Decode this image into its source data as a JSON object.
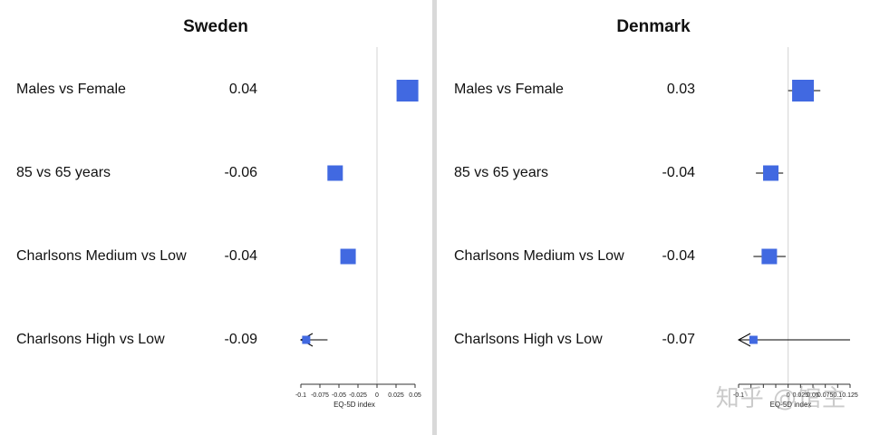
{
  "chart_data": [
    {
      "type": "forest",
      "title": "Sweden",
      "xlabel": "EQ-5D index",
      "xlim": [
        -0.1,
        0.05
      ],
      "x_ticks": [
        "-0.1",
        "-0.075",
        "-0.05",
        "-0.025",
        "0",
        "0.025",
        "0.05"
      ],
      "reference_line": 0,
      "rows": [
        {
          "label": "Males vs Female",
          "value_text": "0.04",
          "estimate": 0.04,
          "ci": [
            0.04,
            0.04
          ],
          "weight": "large",
          "arrow_left": false
        },
        {
          "label": "85 vs 65 years",
          "value_text": "-0.06",
          "estimate": -0.055,
          "ci": [
            -0.055,
            -0.055
          ],
          "weight": "medium",
          "arrow_left": false
        },
        {
          "label": "Charlsons Medium vs Low",
          "value_text": "-0.04",
          "estimate": -0.038,
          "ci": [
            -0.038,
            -0.038
          ],
          "weight": "medium",
          "arrow_left": false
        },
        {
          "label": "Charlsons High vs Low",
          "value_text": "-0.09",
          "estimate": -0.093,
          "ci": [
            -0.1,
            -0.065
          ],
          "weight": "small",
          "arrow_left": true
        }
      ]
    },
    {
      "type": "forest",
      "title": "Denmark",
      "xlabel": "EQ-5D index",
      "xlim": [
        -0.1,
        0.125
      ],
      "x_ticks": [
        "-0.1",
        "",
        "",
        "",
        "0",
        "0.025",
        "0.05",
        "0.075",
        "0.1",
        "0.125"
      ],
      "reference_line": 0,
      "rows": [
        {
          "label": "Males vs Female",
          "value_text": "0.03",
          "estimate": 0.03,
          "ci": [
            0.0,
            0.065
          ],
          "weight": "large",
          "arrow_left": false
        },
        {
          "label": "85 vs 65 years",
          "value_text": "-0.04",
          "estimate": -0.035,
          "ci": [
            -0.065,
            -0.01
          ],
          "weight": "medium",
          "arrow_left": false
        },
        {
          "label": "Charlsons Medium vs Low",
          "value_text": "-0.04",
          "estimate": -0.038,
          "ci": [
            -0.07,
            -0.005
          ],
          "weight": "medium",
          "arrow_left": false
        },
        {
          "label": "Charlsons High vs Low",
          "value_text": "-0.07",
          "estimate": -0.07,
          "ci": [
            -0.1,
            0.125
          ],
          "weight": "small",
          "arrow_left": true
        }
      ]
    }
  ],
  "colors": {
    "box": "#4169e1",
    "reference_line": "#d3d3d3",
    "divider": "#d9d9d9"
  },
  "watermark": {
    "text": "知乎 @馆主"
  }
}
